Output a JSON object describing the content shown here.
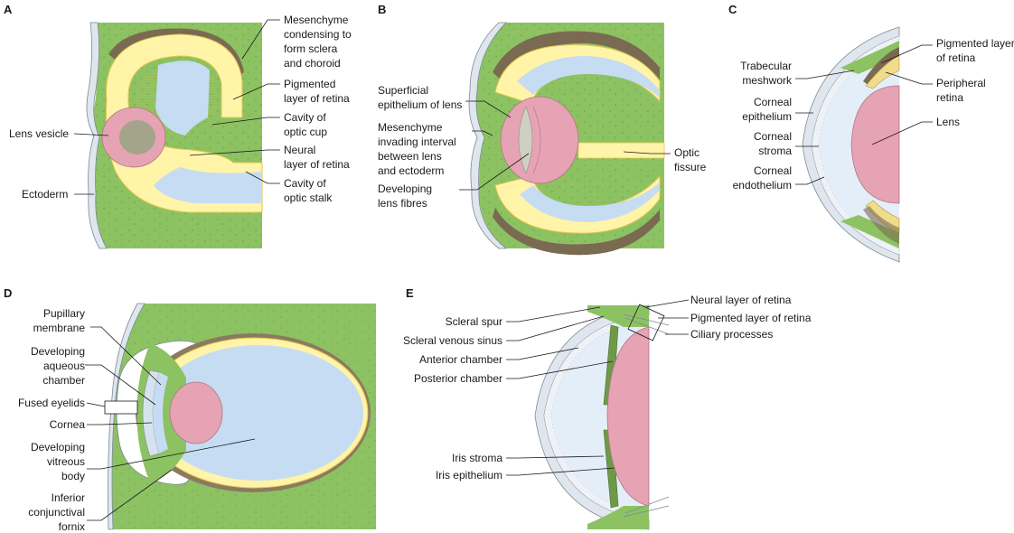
{
  "colors": {
    "mesenchyme": "#8dc263",
    "mesenchyme_dots": "#5f9a44",
    "neural": "#fff4a8",
    "neural_edge": "#e3c64f",
    "cavity": "#c6dcf2",
    "pigment": "#7a6a52",
    "lens": "#e6a3b3",
    "lens_inner": "#a4a48a",
    "ectoderm": "#dfe6ee",
    "skin_edge": "#7d8a96",
    "line": "#1a1a1a"
  },
  "panels": {
    "A": {
      "letter": "A",
      "labels": {
        "mesenchyme_l1": "Mesenchyme",
        "mesenchyme_l2": "condensing to",
        "mesenchyme_l3": "form sclera",
        "mesenchyme_l4": "and choroid",
        "pigmented_l1": "Pigmented",
        "pigmented_l2": "layer of retina",
        "cavity_cup_l1": "Cavity of",
        "cavity_cup_l2": "optic cup",
        "neural_l1": "Neural",
        "neural_l2": "layer of retina",
        "cavity_stalk_l1": "Cavity of",
        "cavity_stalk_l2": "optic stalk",
        "lens_vesicle": "Lens vesicle",
        "ectoderm": "Ectoderm"
      }
    },
    "B": {
      "letter": "B",
      "labels": {
        "superficial_l1": "Superficial",
        "superficial_l2": "epithelium of lens",
        "mes_l1": "Mesenchyme",
        "mes_l2": "invading interval",
        "mes_l3": "between lens",
        "mes_l4": "and ectoderm",
        "developing_l1": "Developing",
        "developing_l2": "lens fibres",
        "optic_l1": "Optic",
        "optic_l2": "fissure"
      }
    },
    "C": {
      "letter": "C",
      "labels": {
        "pig_l1": "Pigmented layer",
        "pig_l2": "of retina",
        "peri_l1": "Peripheral",
        "peri_l2": "retina",
        "lens": "Lens",
        "trab_l1": "Trabecular",
        "trab_l2": "meshwork",
        "cepi_l1": "Corneal",
        "cepi_l2": "epithelium",
        "cstr_l1": "Corneal",
        "cstr_l2": "stroma",
        "cend_l1": "Corneal",
        "cend_l2": "endothelium"
      }
    },
    "D": {
      "letter": "D",
      "labels": {
        "pup_l1": "Pupillary",
        "pup_l2": "membrane",
        "aq_l1": "Developing",
        "aq_l2": "aqueous",
        "aq_l3": "chamber",
        "fused": "Fused eyelids",
        "cornea": "Cornea",
        "vit_l1": "Developing",
        "vit_l2": "vitreous",
        "vit_l3": "body",
        "inf_l1": "Inferior",
        "inf_l2": "conjunctival",
        "inf_l3": "fornix"
      }
    },
    "E": {
      "letter": "E",
      "labels": {
        "neural": "Neural layer of retina",
        "pigmented": "Pigmented layer of retina",
        "ciliary": "Ciliary processes",
        "scleral_spur": "Scleral spur",
        "scleral_venous": "Scleral venous sinus",
        "anterior": "Anterior chamber",
        "posterior": "Posterior chamber",
        "iris_stroma": "Iris stroma",
        "iris_epi": "Iris epithelium"
      }
    }
  }
}
